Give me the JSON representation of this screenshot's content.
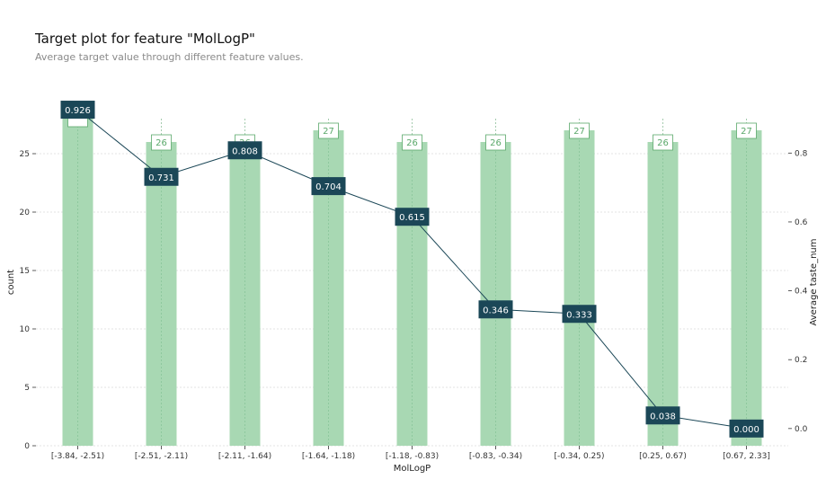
{
  "title": "Target plot for feature \"MolLogP\"",
  "subtitle": "Average target value through different feature values.",
  "chart_data": {
    "type": "bar",
    "title": "Target plot for feature \"MolLogP\"",
    "subtitle": "Average target value through different feature values.",
    "xlabel": "MolLogP",
    "ylabel": "count",
    "y2label": "Average taste_num",
    "categories": [
      "[-3.84, -2.51)",
      "[-2.51, -2.11)",
      "[-2.11, -1.64)",
      "[-1.64, -1.18)",
      "[-1.18, -0.83)",
      "[-0.83, -0.34)",
      "[-0.34, 0.25)",
      "[0.25, 0.67)",
      "[0.67, 2.33]"
    ],
    "series": [
      {
        "name": "count",
        "axis": "left",
        "kind": "bar",
        "values": [
          28,
          26,
          26,
          27,
          26,
          26,
          27,
          26,
          27
        ],
        "labels": [
          "",
          "26",
          "26",
          "27",
          "26",
          "26",
          "27",
          "26",
          "27"
        ]
      },
      {
        "name": "Average taste_num",
        "axis": "right",
        "kind": "line",
        "values": [
          0.926,
          0.731,
          0.808,
          0.704,
          0.615,
          0.346,
          0.333,
          0.038,
          0.0
        ],
        "labels": [
          "0.926",
          "0.731",
          "0.808",
          "0.704",
          "0.615",
          "0.346",
          "0.333",
          "0.038",
          "0.000"
        ]
      }
    ],
    "ylim": [
      0,
      28
    ],
    "yticks": [
      "0",
      "5",
      "10",
      "15",
      "20",
      "25"
    ],
    "y2lim": [
      -0.05,
      0.9
    ],
    "y2ticks": [
      "0.0",
      "0.2",
      "0.4",
      "0.6",
      "0.8"
    ],
    "grid": true,
    "colors": {
      "bar": "#a8d8b3",
      "line": "#1b4757",
      "label_box": "#1b4757",
      "count_text": "#5aa86a"
    }
  }
}
